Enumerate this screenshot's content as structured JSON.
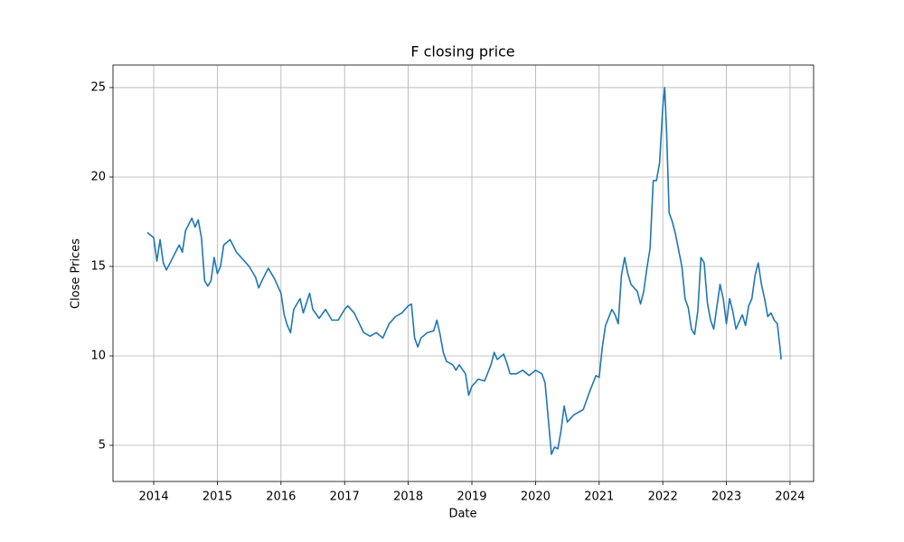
{
  "chart_data": {
    "type": "line",
    "title": "F closing price",
    "x_label": "Date",
    "y_label": "Close Prices",
    "color": "#1f77b4",
    "grid": true,
    "x": [
      2013.9,
      2014.0,
      2014.05,
      2014.1,
      2014.15,
      2014.2,
      2014.3,
      2014.4,
      2014.45,
      2014.5,
      2014.6,
      2014.65,
      2014.7,
      2014.75,
      2014.8,
      2014.85,
      2014.9,
      2014.95,
      2015.0,
      2015.05,
      2015.1,
      2015.2,
      2015.3,
      2015.4,
      2015.5,
      2015.6,
      2015.65,
      2015.7,
      2015.8,
      2015.9,
      2016.0,
      2016.05,
      2016.1,
      2016.15,
      2016.2,
      2016.3,
      2016.35,
      2016.45,
      2016.5,
      2016.6,
      2016.7,
      2016.8,
      2016.9,
      2017.0,
      2017.05,
      2017.15,
      2017.3,
      2017.4,
      2017.5,
      2017.6,
      2017.7,
      2017.8,
      2017.9,
      2018.0,
      2018.05,
      2018.1,
      2018.15,
      2018.2,
      2018.3,
      2018.4,
      2018.45,
      2018.5,
      2018.55,
      2018.6,
      2018.7,
      2018.75,
      2018.8,
      2018.9,
      2018.95,
      2019.0,
      2019.1,
      2019.2,
      2019.3,
      2019.35,
      2019.4,
      2019.5,
      2019.55,
      2019.6,
      2019.7,
      2019.8,
      2019.9,
      2020.0,
      2020.1,
      2020.15,
      2020.2,
      2020.25,
      2020.3,
      2020.35,
      2020.4,
      2020.45,
      2020.5,
      2020.6,
      2020.7,
      2020.75,
      2020.85,
      2020.95,
      2021.0,
      2021.05,
      2021.1,
      2021.2,
      2021.25,
      2021.3,
      2021.35,
      2021.4,
      2021.45,
      2021.5,
      2021.6,
      2021.65,
      2021.7,
      2021.75,
      2021.8,
      2021.85,
      2021.9,
      2021.95,
      2022.0,
      2022.03,
      2022.06,
      2022.1,
      2022.15,
      2022.2,
      2022.3,
      2022.35,
      2022.4,
      2022.45,
      2022.5,
      2022.55,
      2022.6,
      2022.65,
      2022.7,
      2022.75,
      2022.8,
      2022.9,
      2022.95,
      2023.0,
      2023.05,
      2023.1,
      2023.15,
      2023.25,
      2023.3,
      2023.35,
      2023.4,
      2023.45,
      2023.5,
      2023.55,
      2023.6,
      2023.65,
      2023.7,
      2023.75,
      2023.8,
      2023.85,
      2023.86
    ],
    "values": [
      16.9,
      16.6,
      15.3,
      16.5,
      15.2,
      14.8,
      15.5,
      16.2,
      15.8,
      17.0,
      17.7,
      17.2,
      17.6,
      16.6,
      14.2,
      13.9,
      14.2,
      15.5,
      14.6,
      15.0,
      16.2,
      16.5,
      15.8,
      15.4,
      15.0,
      14.4,
      13.8,
      14.2,
      14.9,
      14.3,
      13.5,
      12.3,
      11.7,
      11.3,
      12.6,
      13.2,
      12.4,
      13.5,
      12.6,
      12.1,
      12.6,
      12.0,
      12.0,
      12.6,
      12.8,
      12.4,
      11.3,
      11.1,
      11.3,
      11.0,
      11.8,
      12.2,
      12.4,
      12.8,
      12.9,
      11.0,
      10.5,
      11.0,
      11.3,
      11.4,
      12.0,
      11.2,
      10.2,
      9.7,
      9.5,
      9.2,
      9.5,
      9.0,
      7.8,
      8.3,
      8.7,
      8.6,
      9.5,
      10.2,
      9.8,
      10.1,
      9.6,
      9.0,
      9.0,
      9.2,
      8.9,
      9.2,
      9.0,
      8.5,
      6.5,
      4.5,
      4.9,
      4.8,
      5.8,
      7.2,
      6.3,
      6.7,
      6.9,
      7.0,
      8.0,
      8.9,
      8.8,
      10.5,
      11.7,
      12.6,
      12.3,
      11.8,
      14.5,
      15.5,
      14.6,
      14.0,
      13.6,
      12.9,
      13.6,
      14.9,
      16.0,
      19.8,
      19.8,
      20.8,
      23.9,
      25.0,
      22.5,
      18.0,
      17.5,
      16.8,
      15.0,
      13.2,
      12.7,
      11.5,
      11.2,
      12.5,
      15.5,
      15.2,
      13.0,
      12.0,
      11.5,
      14.0,
      13.2,
      11.8,
      13.2,
      12.5,
      11.5,
      12.3,
      11.7,
      12.8,
      13.2,
      14.5,
      15.2,
      14.0,
      13.2,
      12.2,
      12.4,
      12.0,
      11.8,
      10.2,
      9.8
    ],
    "xlim": [
      2013.36,
      2024.37
    ],
    "xticks": [
      2014,
      2015,
      2016,
      2017,
      2018,
      2019,
      2020,
      2021,
      2022,
      2023,
      2024
    ],
    "ylim": [
      2.98,
      26.26
    ],
    "yticks": [
      5,
      10,
      15,
      20,
      25
    ]
  }
}
